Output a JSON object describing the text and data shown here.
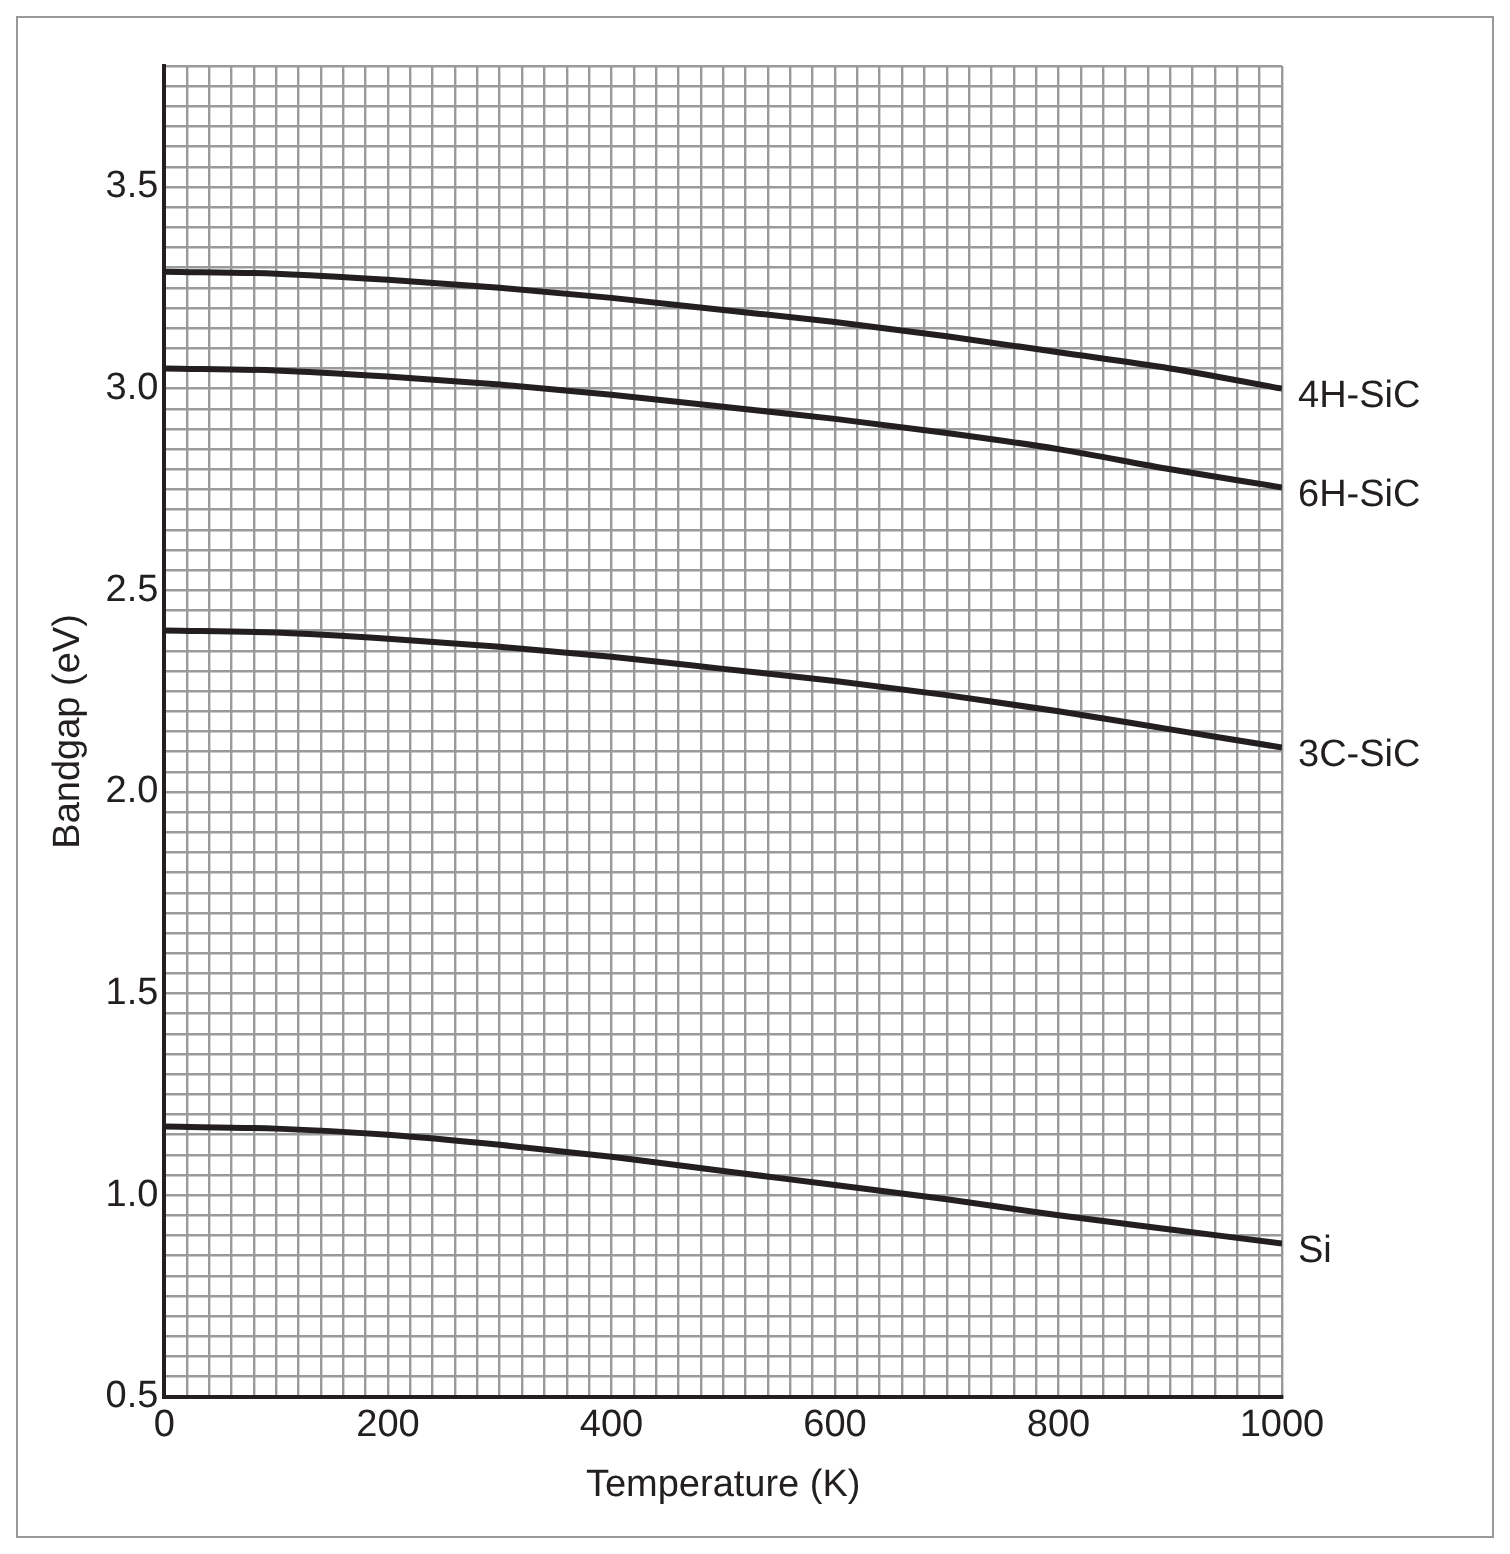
{
  "chart_data": {
    "type": "line",
    "xlabel": "Temperature (K)",
    "ylabel": "Bandgap (eV)",
    "x": [
      0,
      100,
      200,
      300,
      400,
      500,
      600,
      700,
      800,
      900,
      1000
    ],
    "series": [
      {
        "name": "4H-SiC",
        "color": "#231f20",
        "values": [
          3.29,
          3.285,
          3.27,
          3.25,
          3.225,
          3.195,
          3.165,
          3.13,
          3.09,
          3.05,
          3.0
        ]
      },
      {
        "name": "6H-SiC",
        "color": "#231f20",
        "values": [
          3.05,
          3.045,
          3.03,
          3.01,
          2.985,
          2.955,
          2.925,
          2.89,
          2.85,
          2.8,
          2.755
        ]
      },
      {
        "name": "3C-SiC",
        "color": "#231f20",
        "values": [
          2.4,
          2.395,
          2.38,
          2.36,
          2.335,
          2.305,
          2.275,
          2.24,
          2.2,
          2.155,
          2.11
        ]
      },
      {
        "name": "Si",
        "color": "#231f20",
        "values": [
          1.17,
          1.165,
          1.15,
          1.125,
          1.095,
          1.06,
          1.025,
          0.99,
          0.95,
          0.915,
          0.88
        ]
      }
    ],
    "xlim": [
      0,
      1000
    ],
    "xticks": [
      0,
      {
        "value": 20,
        "label": null
      },
      {
        "value": 40,
        "label": null
      },
      {
        "value": 60,
        "label": null
      },
      {
        "value": 80,
        "label": null
      },
      {
        "value": 100,
        "label": null
      },
      {
        "value": 120,
        "label": null
      },
      {
        "value": 140,
        "label": null
      },
      {
        "value": 160,
        "label": null
      },
      {
        "value": 180,
        "label": null
      },
      200,
      {
        "value": 220,
        "label": null
      },
      {
        "value": 240,
        "label": null
      },
      {
        "value": 260,
        "label": null
      },
      {
        "value": 280,
        "label": null
      },
      {
        "value": 300,
        "label": null
      },
      {
        "value": 320,
        "label": null
      },
      {
        "value": 340,
        "label": null
      },
      {
        "value": 360,
        "label": null
      },
      {
        "value": 380,
        "label": null
      },
      400,
      {
        "value": 420,
        "label": null
      },
      {
        "value": 440,
        "label": null
      },
      {
        "value": 460,
        "label": null
      },
      {
        "value": 480,
        "label": null
      },
      {
        "value": 500,
        "label": null
      },
      {
        "value": 520,
        "label": null
      },
      {
        "value": 540,
        "label": null
      },
      {
        "value": 560,
        "label": null
      },
      {
        "value": 580,
        "label": null
      },
      600,
      {
        "value": 620,
        "label": null
      },
      {
        "value": 640,
        "label": null
      },
      {
        "value": 660,
        "label": null
      },
      {
        "value": 680,
        "label": null
      },
      {
        "value": 700,
        "label": null
      },
      {
        "value": 720,
        "label": null
      },
      {
        "value": 740,
        "label": null
      },
      {
        "value": 760,
        "label": null
      },
      {
        "value": 780,
        "label": null
      },
      800,
      {
        "value": 820,
        "label": null
      },
      {
        "value": 840,
        "label": null
      },
      {
        "value": 860,
        "label": null
      },
      {
        "value": 880,
        "label": null
      },
      {
        "value": 900,
        "label": null
      },
      {
        "value": 920,
        "label": null
      },
      {
        "value": 940,
        "label": null
      },
      {
        "value": 960,
        "label": null
      },
      {
        "value": 980,
        "label": null
      },
      1000
    ],
    "ylim": [
      0.5,
      3.8
    ],
    "yticks": [
      0.5,
      {
        "value": 0.55,
        "label": null
      },
      {
        "value": 0.6,
        "label": null
      },
      {
        "value": 0.65,
        "label": null
      },
      {
        "value": 0.7,
        "label": null
      },
      {
        "value": 0.75,
        "label": null
      },
      {
        "value": 0.8,
        "label": null
      },
      {
        "value": 0.85,
        "label": null
      },
      {
        "value": 0.9,
        "label": null
      },
      {
        "value": 0.95,
        "label": null
      },
      {
        "value": 1,
        "label": "1.0"
      },
      {
        "value": 1.05,
        "label": null
      },
      {
        "value": 1.1,
        "label": null
      },
      {
        "value": 1.15,
        "label": null
      },
      {
        "value": 1.2,
        "label": null
      },
      {
        "value": 1.25,
        "label": null
      },
      {
        "value": 1.3,
        "label": null
      },
      {
        "value": 1.35,
        "label": null
      },
      {
        "value": 1.4,
        "label": null
      },
      {
        "value": 1.45,
        "label": null
      },
      1.5,
      {
        "value": 1.55,
        "label": null
      },
      {
        "value": 1.6,
        "label": null
      },
      {
        "value": 1.65,
        "label": null
      },
      {
        "value": 1.7,
        "label": null
      },
      {
        "value": 1.75,
        "label": null
      },
      {
        "value": 1.8,
        "label": null
      },
      {
        "value": 1.85,
        "label": null
      },
      {
        "value": 1.9,
        "label": null
      },
      {
        "value": 1.95,
        "label": null
      },
      {
        "value": 2,
        "label": "2.0"
      },
      {
        "value": 2.05,
        "label": null
      },
      {
        "value": 2.1,
        "label": null
      },
      {
        "value": 2.15,
        "label": null
      },
      {
        "value": 2.2,
        "label": null
      },
      {
        "value": 2.25,
        "label": null
      },
      {
        "value": 2.3,
        "label": null
      },
      {
        "value": 2.35,
        "label": null
      },
      {
        "value": 2.4,
        "label": null
      },
      {
        "value": 2.45,
        "label": null
      },
      2.5,
      {
        "value": 2.55,
        "label": null
      },
      {
        "value": 2.6,
        "label": null
      },
      {
        "value": 2.65,
        "label": null
      },
      {
        "value": 2.7,
        "label": null
      },
      {
        "value": 2.75,
        "label": null
      },
      {
        "value": 2.8,
        "label": null
      },
      {
        "value": 2.85,
        "label": null
      },
      {
        "value": 2.9,
        "label": null
      },
      {
        "value": 2.95,
        "label": null
      },
      {
        "value": 3,
        "label": "3.0"
      },
      {
        "value": 3.05,
        "label": null
      },
      {
        "value": 3.1,
        "label": null
      },
      {
        "value": 3.15,
        "label": null
      },
      {
        "value": 3.2,
        "label": null
      },
      {
        "value": 3.25,
        "label": null
      },
      {
        "value": 3.3,
        "label": null
      },
      {
        "value": 3.35,
        "label": null
      },
      {
        "value": 3.4,
        "label": null
      },
      {
        "value": 3.45,
        "label": null
      },
      3.5,
      {
        "value": 3.55,
        "label": null
      },
      {
        "value": 3.6,
        "label": null
      },
      {
        "value": 3.65,
        "label": null
      },
      {
        "value": 3.7,
        "label": null
      },
      {
        "value": 3.75,
        "label": null
      },
      {
        "value": 3.8,
        "label": null
      }
    ],
    "grid": true,
    "legend": false,
    "marker": "none",
    "line_style": "solid"
  }
}
